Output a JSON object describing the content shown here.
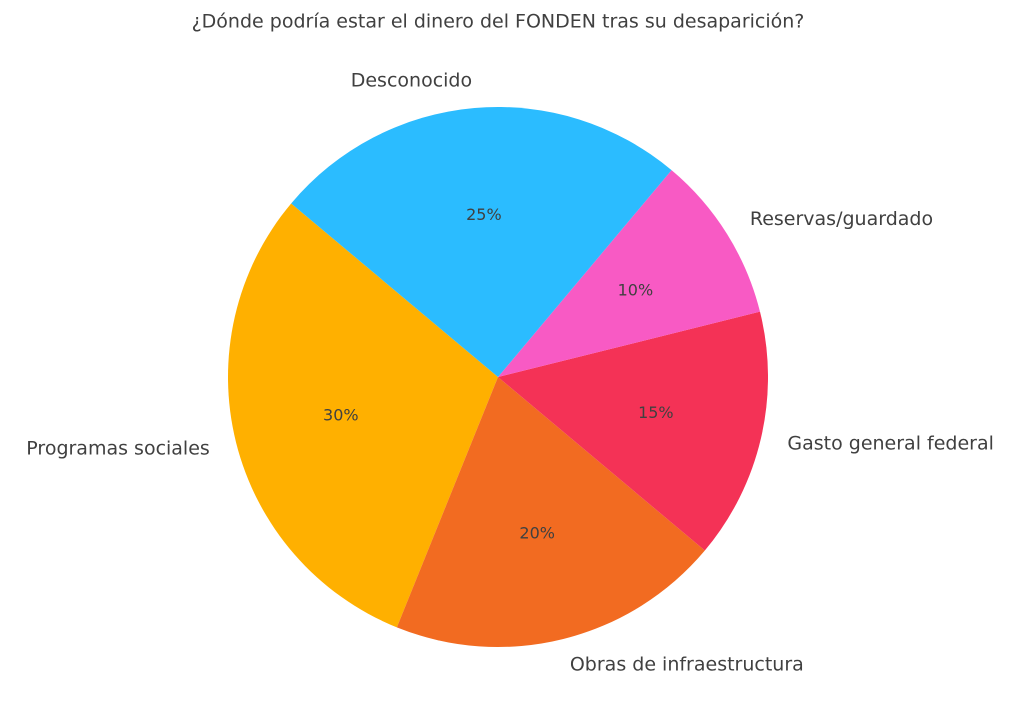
{
  "chart_data": {
    "type": "pie",
    "title": "¿Dónde podría estar el dinero del FONDEN tras su desaparición?",
    "categories": [
      "Programas sociales",
      "Obras de infraestructura",
      "Gasto general federal",
      "Reservas/guardado",
      "Desconocido"
    ],
    "values": [
      30,
      20,
      15,
      10,
      25
    ],
    "value_labels": [
      "30%",
      "20%",
      "15%",
      "10%",
      "25%"
    ],
    "colors": [
      "#FFB000",
      "#F26B21",
      "#F43256",
      "#F85AC4",
      "#2BBCFF"
    ],
    "startangle": 140
  }
}
